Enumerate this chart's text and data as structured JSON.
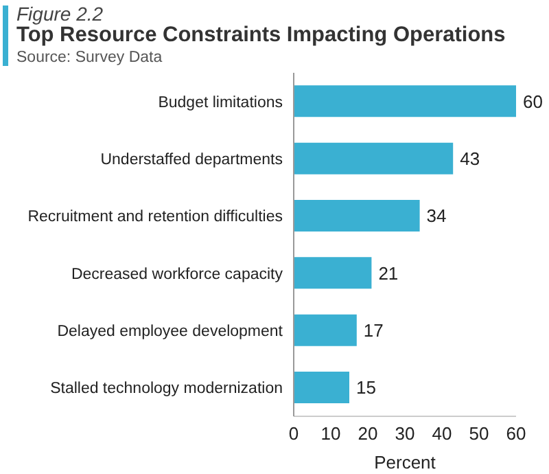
{
  "chart_data": {
    "type": "bar",
    "orientation": "horizontal",
    "title": "Top Resource Constraints Impacting Operations",
    "subtitle": "Figure 2.2",
    "annotations": [
      "Source: Survey Data"
    ],
    "categories": [
      "Budget limitations",
      "Understaffed departments",
      "Recruitment and retention difficulties",
      "Decreased workforce capacity",
      "Delayed employee development",
      "Stalled technology modernization"
    ],
    "values": [
      60,
      43,
      34,
      21,
      17,
      15
    ],
    "color": "#3ab0d2",
    "xlabel": "Percent",
    "xlim": [
      0,
      60
    ],
    "xticks": [
      0,
      10,
      20,
      30,
      40,
      50,
      60
    ],
    "data_labels": true,
    "grid": false
  }
}
